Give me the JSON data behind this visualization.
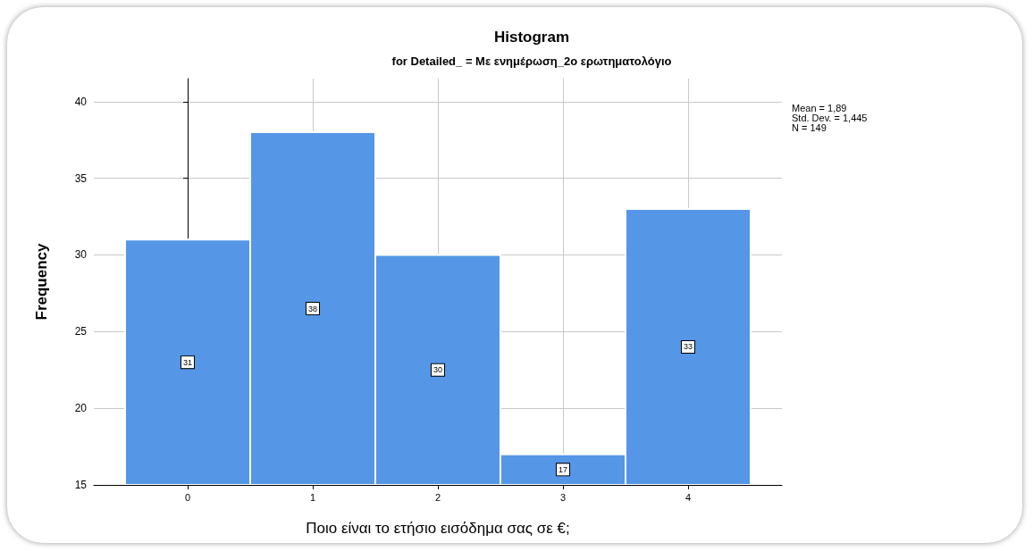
{
  "chart_data": {
    "type": "histogram",
    "title": "Histogram",
    "subtitle": "for Detailed_ = Με ενημέρωση_2ο ερωτηματολόγιο",
    "xlabel": "Ποιο είναι το ετήσιο εισόδημα σας σε €;",
    "ylabel": "Frequency",
    "bins": [
      -0.5,
      0.5,
      1.5,
      2.5,
      3.5,
      4.5
    ],
    "values": [
      31,
      38,
      30,
      17,
      33
    ],
    "color": "#5596e6",
    "xlim": [
      -0.75,
      4.75
    ],
    "xticks": [
      0,
      1,
      2,
      3,
      4
    ],
    "ylim": [
      15,
      41.5
    ],
    "yticks": [
      15,
      20,
      25,
      30,
      35,
      40
    ],
    "grid": true,
    "data_labels": true,
    "annotations": [
      "Mean = 1,89",
      "Std. Dev. = 1,445",
      "N = 149"
    ]
  }
}
